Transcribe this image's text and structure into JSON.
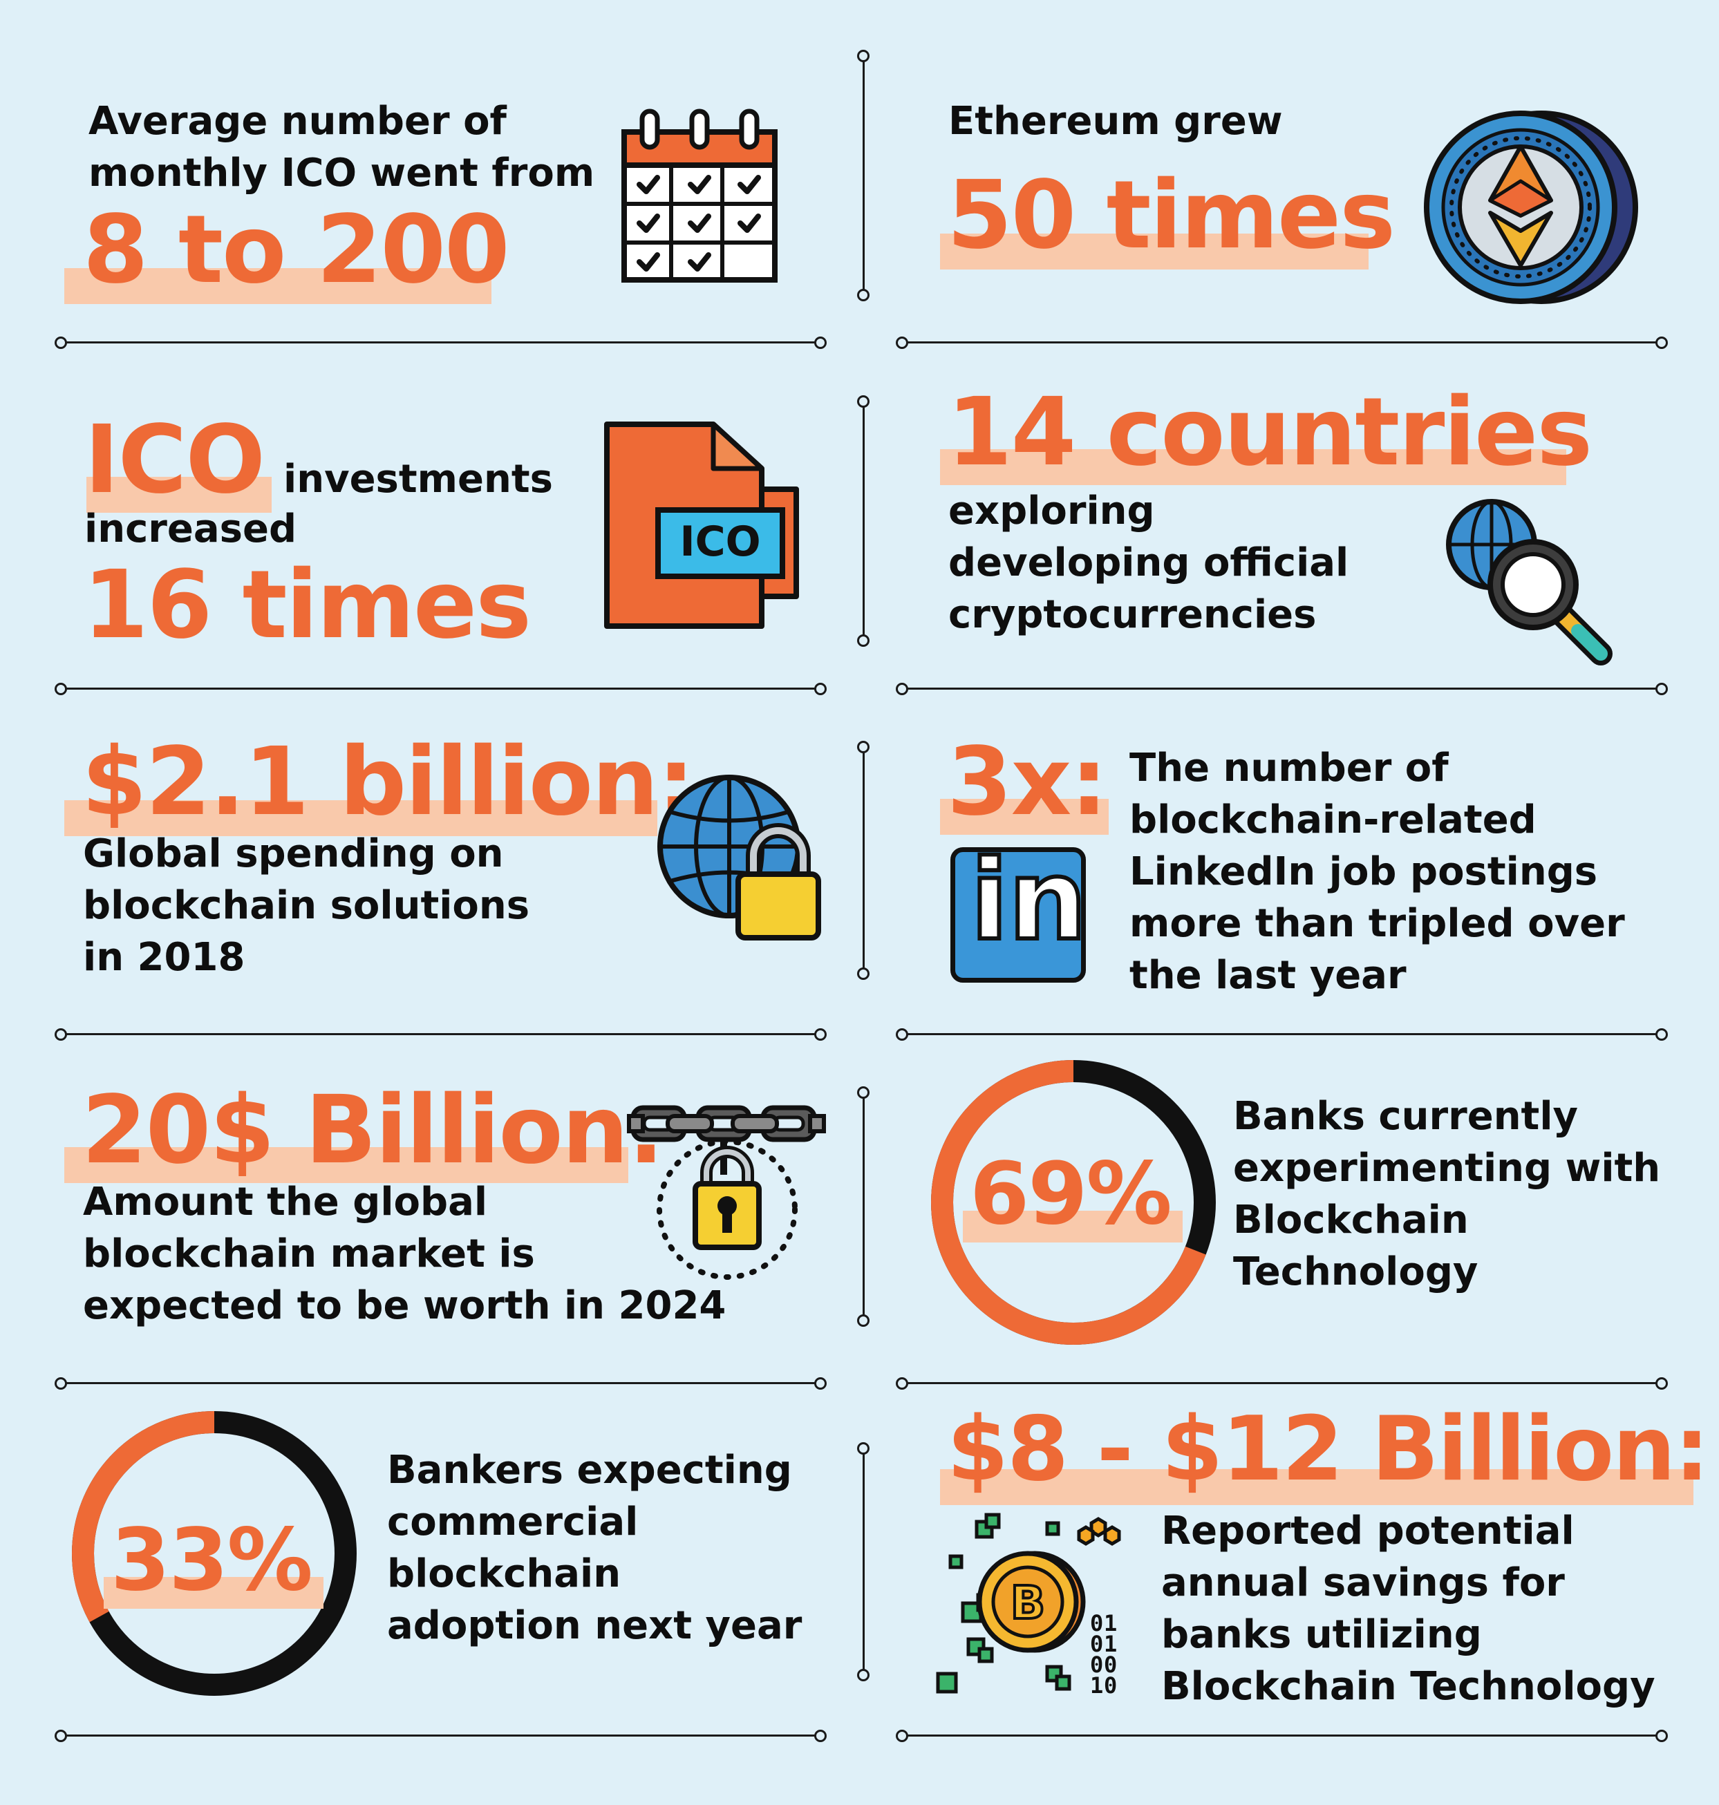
{
  "colors": {
    "background": "#dff0f8",
    "accent": "#ee6a36",
    "highlight": "#f9c9ab",
    "text": "#0e0e0e"
  },
  "cards": {
    "ico_monthly": {
      "text": "Average number of\nmonthly ICO went from",
      "big": "8 to 200",
      "icon": "calendar-checklist-icon"
    },
    "ethereum": {
      "text": "Ethereum grew",
      "big": "50 times",
      "icon": "ethereum-coin-icon"
    },
    "ico_investments": {
      "big1": "ICO",
      "text1": "investments",
      "text2": "increased",
      "big2": "16 times",
      "icon": "ico-document-icon"
    },
    "countries": {
      "big": "14 countries",
      "text": "exploring\ndeveloping official\ncryptocurrencies",
      "icon": "globe-search-icon"
    },
    "spending": {
      "big": "$2.1 billion:",
      "text": "Global spending on\nblockchain solutions\nin 2018",
      "icon": "globe-lock-icon"
    },
    "linkedin": {
      "big": "3x:",
      "text": "The number of\nblockchain-related\nLinkedIn job postings\nmore than tripled over\nthe last year",
      "icon": "linkedin-icon",
      "logo_text": "in"
    },
    "market": {
      "big": "20$ Billion:",
      "text": "Amount the global\nblockchain market is\nexpected to be worth in 2024",
      "icon": "chain-padlock-icon"
    },
    "banks": {
      "percent_label": "69%",
      "percent": 69,
      "text": "Banks currently\nexperimenting with\nBlockchain\nTechnology"
    },
    "bankers": {
      "percent_label": "33%",
      "percent": 33,
      "text": "Bankers expecting\ncommercial\nblockchain\nadoption next year"
    },
    "savings": {
      "big": "$8 - $12 Billion:",
      "text": "Reported potential\nannual savings for\nbanks utilizing\nBlockchain Technology",
      "icon": "bitcoin-digital-icon"
    }
  },
  "icons": {
    "ico_label": "ICO",
    "bitcoin_symbol": "B",
    "binary_digits": [
      "0",
      "1",
      "0",
      "1",
      "0",
      "0",
      "1",
      "0"
    ]
  }
}
